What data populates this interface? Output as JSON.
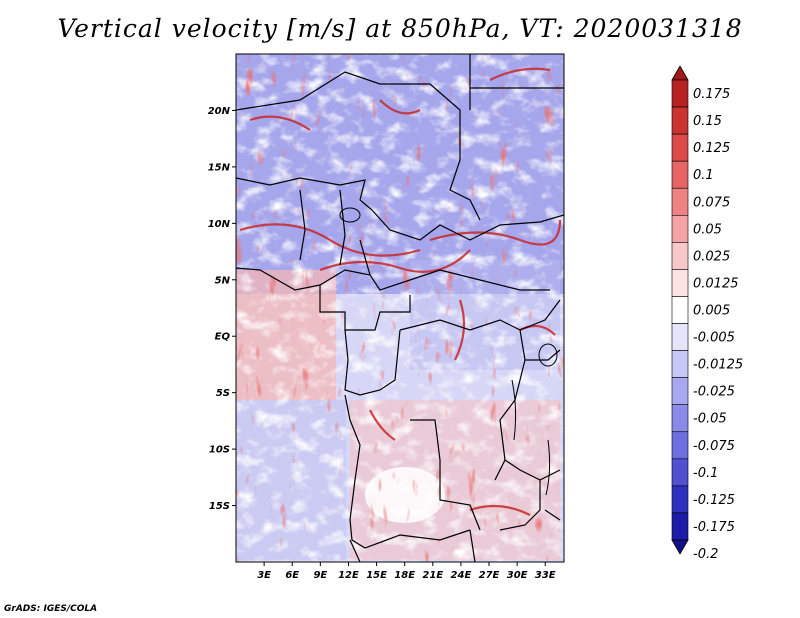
{
  "title": "Vertical velocity [m/s] at 850hPa, VT: 2020031318",
  "credit": "GrADS: IGES/COLA",
  "map": {
    "lon_range": [
      0,
      35
    ],
    "lat_range": [
      -20,
      25
    ],
    "lat_ticks": [
      {
        "value": 20,
        "label": "20N"
      },
      {
        "value": 15,
        "label": "15N"
      },
      {
        "value": 10,
        "label": "10N"
      },
      {
        "value": 5,
        "label": "5N"
      },
      {
        "value": 0,
        "label": "EQ"
      },
      {
        "value": -5,
        "label": "5S"
      },
      {
        "value": -10,
        "label": "10S"
      },
      {
        "value": -15,
        "label": "15S"
      }
    ],
    "lon_ticks": [
      {
        "value": 3,
        "label": "3E"
      },
      {
        "value": 6,
        "label": "6E"
      },
      {
        "value": 9,
        "label": "9E"
      },
      {
        "value": 12,
        "label": "12E"
      },
      {
        "value": 15,
        "label": "15E"
      },
      {
        "value": 18,
        "label": "18E"
      },
      {
        "value": 21,
        "label": "21E"
      },
      {
        "value": 24,
        "label": "24E"
      },
      {
        "value": 27,
        "label": "27E"
      },
      {
        "value": 30,
        "label": "30E"
      },
      {
        "value": 33,
        "label": "33E"
      }
    ]
  },
  "colorbar": {
    "levels": [
      "0.175",
      "0.15",
      "0.125",
      "0.1",
      "0.075",
      "0.05",
      "0.025",
      "0.0125",
      "0.005",
      "-0.005",
      "-0.0125",
      "-0.025",
      "-0.05",
      "-0.075",
      "-0.1",
      "-0.125",
      "-0.175",
      "-0.2"
    ],
    "colors": [
      "#a01818",
      "#b82222",
      "#cc3232",
      "#dc4a4a",
      "#e66464",
      "#ee8282",
      "#f4a4a4",
      "#f8c8c8",
      "#fce4e4",
      "#ffffff",
      "#e4e4fc",
      "#c8c8f8",
      "#a8a8f0",
      "#8a8ae8",
      "#6e6ee0",
      "#5050d0",
      "#3030c0",
      "#1c1ca8",
      "#10108c"
    ]
  },
  "colors": {
    "positive": "#d83a3a",
    "negative": "#6a6ae0",
    "border": "#000000"
  }
}
